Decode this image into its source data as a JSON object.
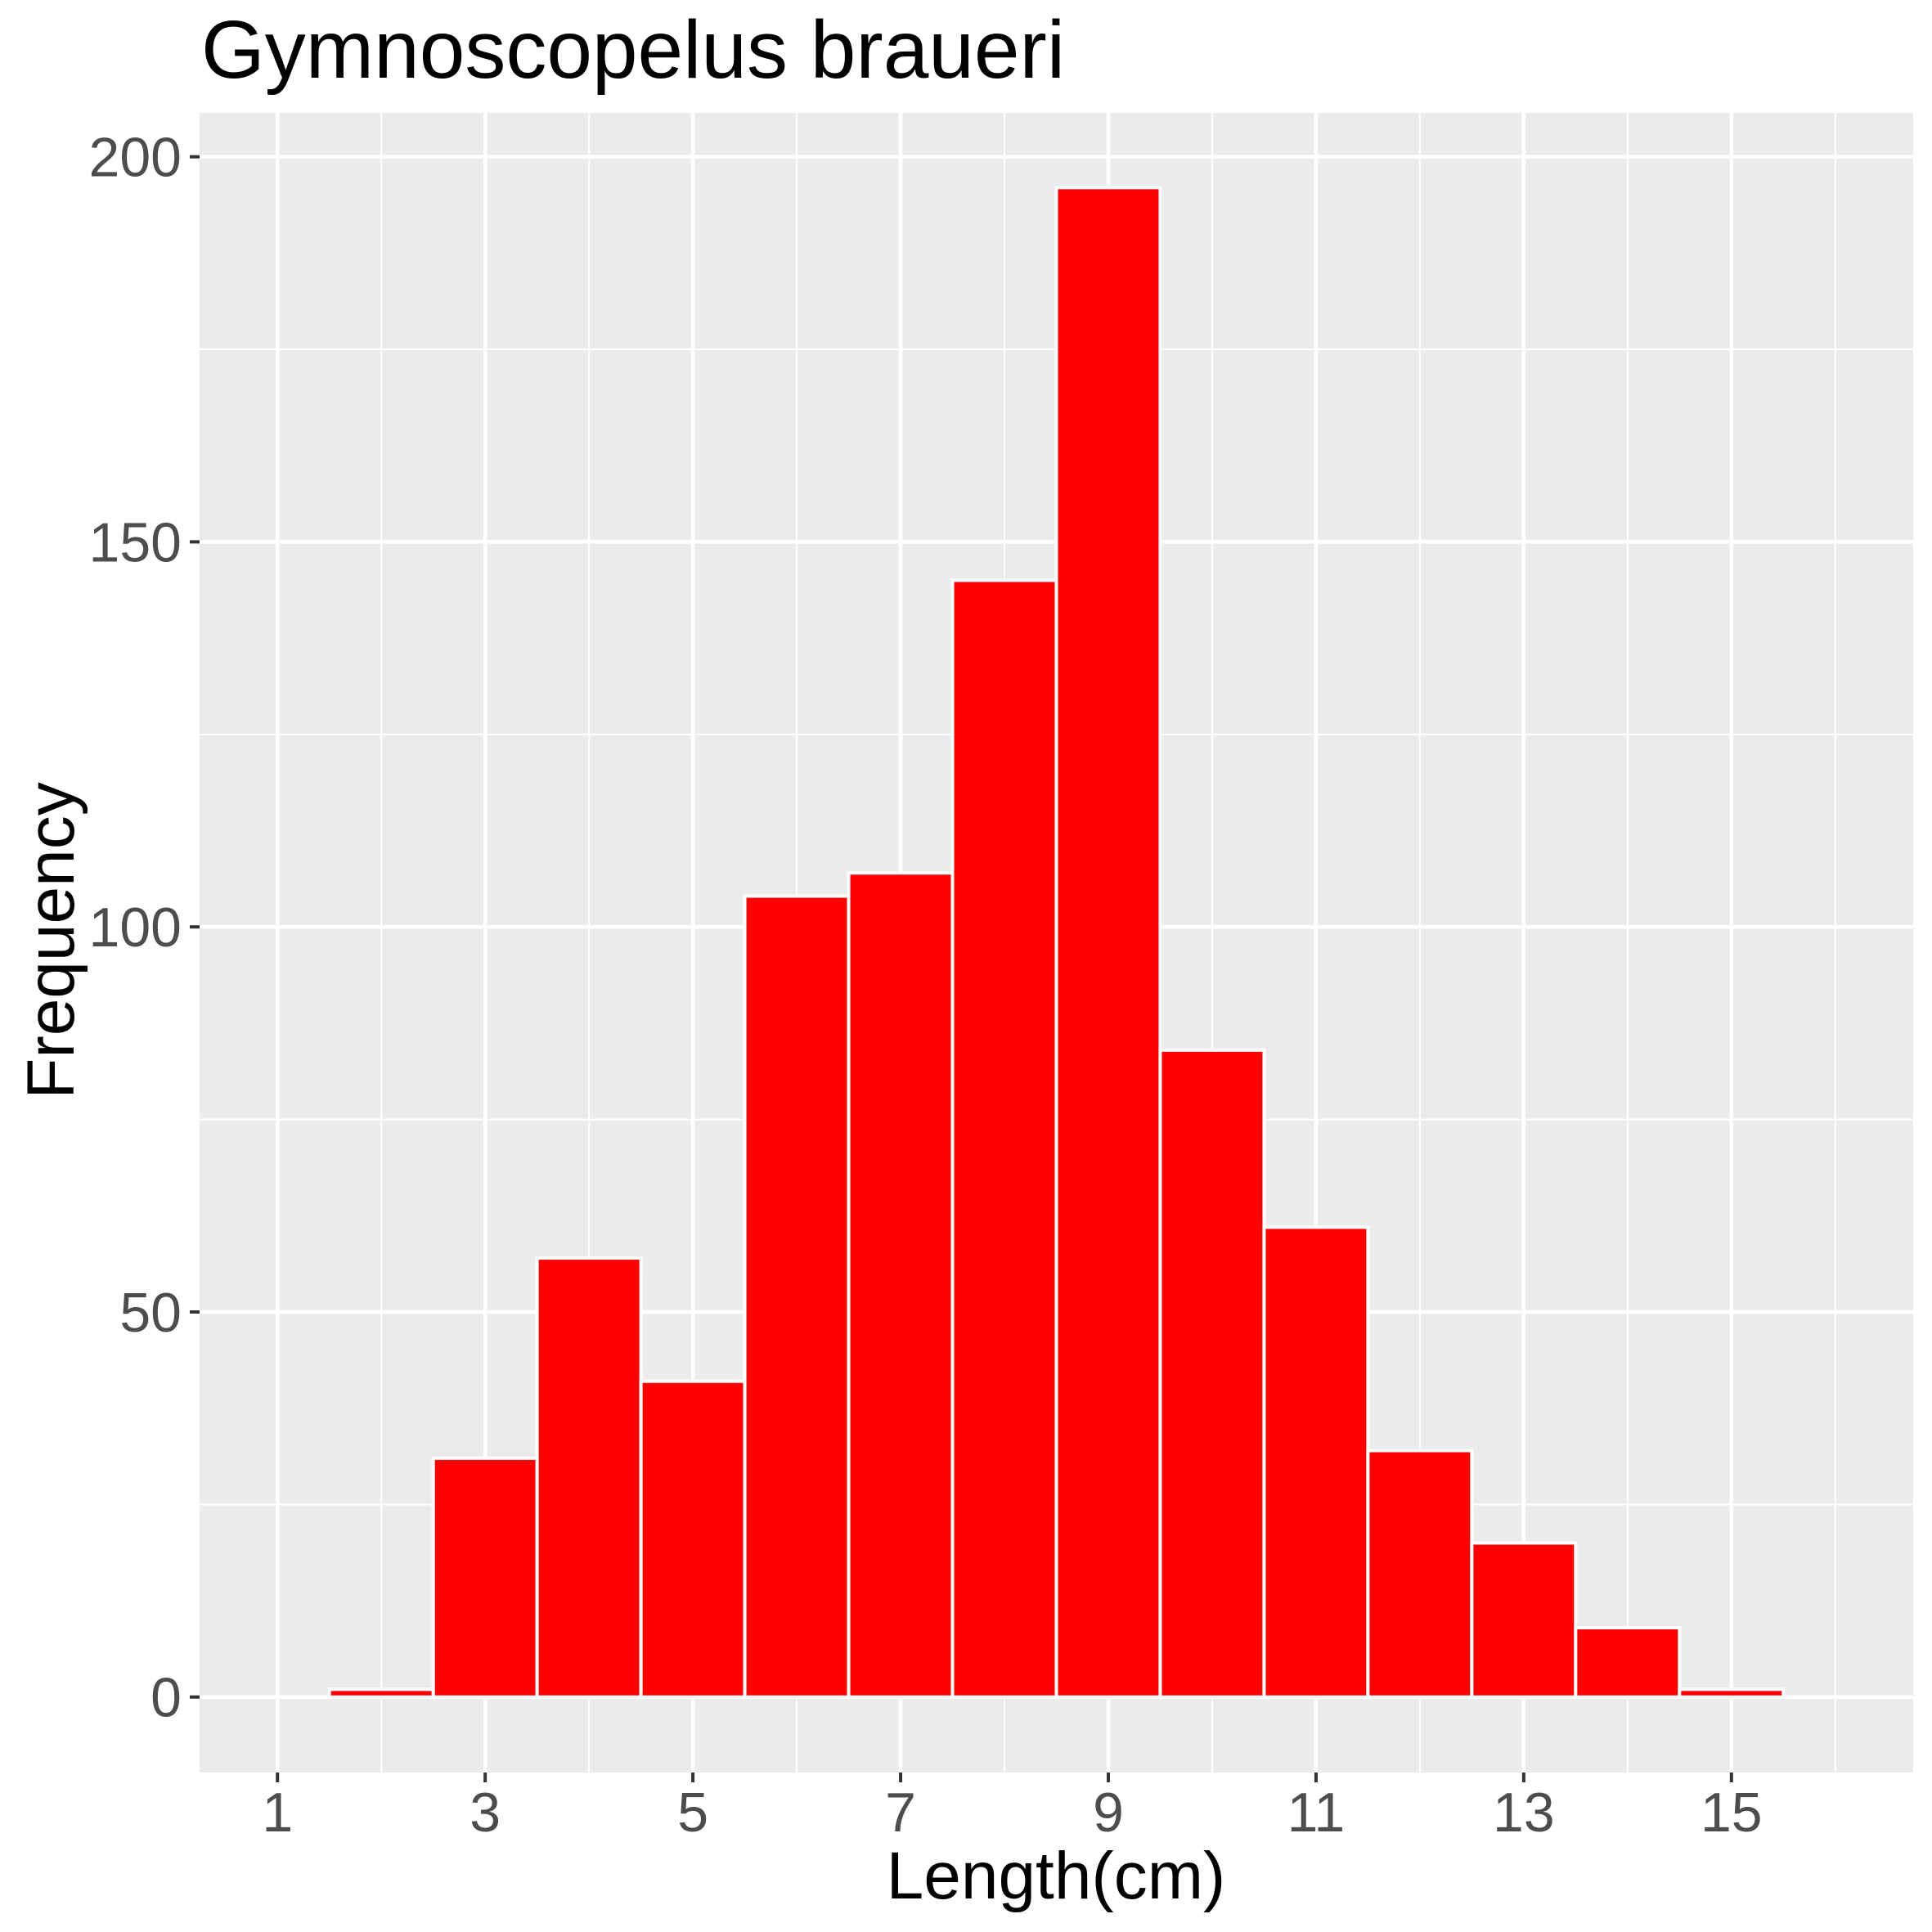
{
  "chart_data": {
    "type": "bar",
    "subtype": "histogram",
    "title": "Gymnoscopelus braueri",
    "xlabel": "Length(cm)",
    "ylabel": "Frequency",
    "bin_width": 1,
    "categories": [
      2,
      3,
      4,
      5,
      6,
      7,
      8,
      9,
      10,
      11,
      12,
      13,
      14,
      15
    ],
    "bins": [
      {
        "center": 2,
        "start": 1.5,
        "end": 2.5,
        "count": 1
      },
      {
        "center": 3,
        "start": 2.5,
        "end": 3.5,
        "count": 31
      },
      {
        "center": 4,
        "start": 3.5,
        "end": 4.5,
        "count": 57
      },
      {
        "center": 5,
        "start": 4.5,
        "end": 5.5,
        "count": 41
      },
      {
        "center": 6,
        "start": 5.5,
        "end": 6.5,
        "count": 104
      },
      {
        "center": 7,
        "start": 6.5,
        "end": 7.5,
        "count": 107
      },
      {
        "center": 8,
        "start": 7.5,
        "end": 8.5,
        "count": 145
      },
      {
        "center": 9,
        "start": 8.5,
        "end": 9.5,
        "count": 196
      },
      {
        "center": 10,
        "start": 9.5,
        "end": 10.5,
        "count": 84
      },
      {
        "center": 11,
        "start": 10.5,
        "end": 11.5,
        "count": 61
      },
      {
        "center": 12,
        "start": 11.5,
        "end": 12.5,
        "count": 32
      },
      {
        "center": 13,
        "start": 12.5,
        "end": 13.5,
        "count": 20
      },
      {
        "center": 14,
        "start": 13.5,
        "end": 14.5,
        "count": 9
      },
      {
        "center": 15,
        "start": 14.5,
        "end": 15.5,
        "count": 1
      }
    ],
    "values": [
      1,
      31,
      57,
      41,
      104,
      107,
      145,
      196,
      84,
      61,
      32,
      20,
      9,
      1
    ],
    "x_ticks": [
      1,
      3,
      5,
      7,
      9,
      11,
      13,
      15
    ],
    "x_minor": [
      2,
      4,
      6,
      8,
      10,
      12,
      14,
      16
    ],
    "y_ticks": [
      0,
      50,
      100,
      150,
      200
    ],
    "y_minor": [
      25,
      75,
      125,
      175
    ],
    "xlim": [
      0.25,
      16.75
    ],
    "ylim": [
      -9.8,
      205.7
    ],
    "grid": true,
    "legend": null,
    "colors": {
      "bar_fill": "#FF0000",
      "bar_outline": "#FFFFFF",
      "panel_background": "#EBEBEB",
      "grid": "#FFFFFF",
      "tick_label": "#4D4D4D",
      "tick_mark": "#333333",
      "text": "#000000"
    }
  }
}
